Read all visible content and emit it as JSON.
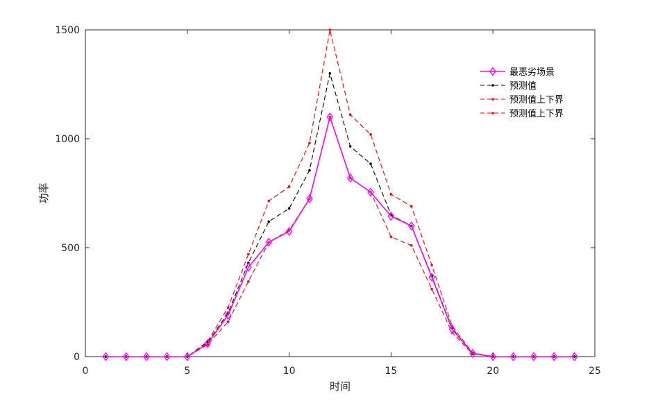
{
  "chart_data": {
    "type": "line",
    "xlabel": "时间",
    "ylabel": "功率",
    "xlim": [
      0,
      25
    ],
    "ylim": [
      0,
      1500
    ],
    "xticks": [
      0,
      5,
      10,
      15,
      20,
      25
    ],
    "yticks": [
      0,
      500,
      1000,
      1500
    ],
    "grid": false,
    "legend_position": "top-right",
    "x": [
      1,
      2,
      3,
      4,
      5,
      6,
      7,
      8,
      9,
      10,
      11,
      12,
      13,
      14,
      15,
      16,
      17,
      18,
      19,
      20,
      21,
      22,
      23,
      24
    ],
    "series": [
      {
        "name": "最恶劣场景",
        "color": "#ff00ff",
        "line_style": "solid",
        "marker": "diamond",
        "values": [
          0,
          0,
          0,
          0,
          0,
          60,
          190,
          410,
          525,
          575,
          725,
          1100,
          820,
          755,
          645,
          600,
          365,
          125,
          15,
          0,
          0,
          0,
          0,
          0
        ]
      },
      {
        "name": "预测值",
        "color": "#000000",
        "line_style": "dashed",
        "marker": "dot",
        "values": [
          0,
          0,
          0,
          0,
          0,
          65,
          200,
          430,
          620,
          680,
          855,
          1300,
          965,
          885,
          650,
          600,
          370,
          130,
          15,
          0,
          0,
          0,
          0,
          0
        ]
      },
      {
        "name": "预测值上下界",
        "color": "#ff0000",
        "line_style": "dashed",
        "marker": "dot",
        "values": [
          0,
          0,
          0,
          0,
          0,
          70,
          225,
          470,
          715,
          780,
          980,
          1500,
          1110,
          1020,
          745,
          690,
          420,
          140,
          18,
          0,
          0,
          0,
          0,
          0
        ]
      },
      {
        "name": "预测值上下界",
        "color": "#ff0000",
        "line_style": "dashed",
        "marker": "dot",
        "values": [
          0,
          0,
          0,
          0,
          0,
          55,
          160,
          345,
          525,
          580,
          725,
          1100,
          820,
          755,
          550,
          510,
          310,
          110,
          12,
          0,
          0,
          0,
          0,
          0
        ]
      }
    ]
  }
}
